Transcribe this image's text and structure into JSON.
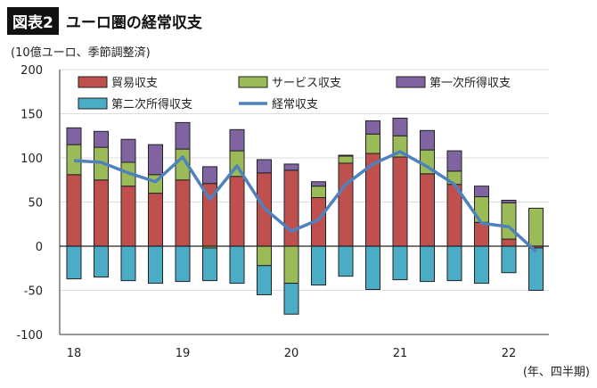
{
  "header": {
    "tag": "図表2",
    "title": "ユーロ圏の経常収支",
    "unit": "(10億ユーロ、季節調整済)"
  },
  "chart_data": {
    "type": "bar",
    "stacked": true,
    "xlabel": "(年、四半期)",
    "ylim": [
      -100,
      200
    ],
    "yticks": [
      -100,
      -50,
      0,
      50,
      100,
      150,
      200
    ],
    "xtick_labels": [
      {
        "i": 0,
        "label": "18"
      },
      {
        "i": 4,
        "label": "19"
      },
      {
        "i": 8,
        "label": "20"
      },
      {
        "i": 12,
        "label": "21"
      },
      {
        "i": 16,
        "label": "22"
      }
    ],
    "categories": [
      "18Q1",
      "18Q2",
      "18Q3",
      "18Q4",
      "19Q1",
      "19Q2",
      "19Q3",
      "19Q4",
      "20Q1",
      "20Q2",
      "20Q3",
      "20Q4",
      "21Q1",
      "21Q2",
      "21Q3",
      "21Q4",
      "22Q1",
      "22Q2"
    ],
    "grid": true,
    "legend": "top",
    "series": [
      {
        "name": "貿易収支",
        "color": "#c0504d",
        "values": [
          81,
          75,
          68,
          60,
          75,
          71,
          79,
          83,
          86,
          55,
          94,
          105,
          101,
          82,
          70,
          27,
          8,
          -2
        ]
      },
      {
        "name": "サービス収支",
        "color": "#9bbb59",
        "values": [
          34,
          37,
          27,
          21,
          35,
          -2,
          29,
          -22,
          -42,
          13,
          8,
          22,
          24,
          27,
          15,
          29,
          41,
          43
        ]
      },
      {
        "name": "第一次所得収支",
        "color": "#8064a2",
        "values": [
          19,
          18,
          26,
          34,
          30,
          19,
          24,
          15,
          7,
          5,
          1,
          15,
          20,
          22,
          23,
          12,
          3,
          0
        ]
      },
      {
        "name": "第二次所得収支",
        "color": "#4bacc6",
        "values": [
          -37,
          -35,
          -39,
          -42,
          -40,
          -37,
          -42,
          -33,
          -35,
          -44,
          -34,
          -49,
          -38,
          -40,
          -39,
          -42,
          -30,
          -48
        ]
      },
      {
        "name": "経常収支",
        "type": "line",
        "color": "#4f81bd",
        "values": [
          97,
          95,
          83,
          73,
          101,
          53,
          91,
          43,
          17,
          30,
          70,
          93,
          107,
          90,
          70,
          26,
          22,
          -6
        ]
      }
    ]
  }
}
